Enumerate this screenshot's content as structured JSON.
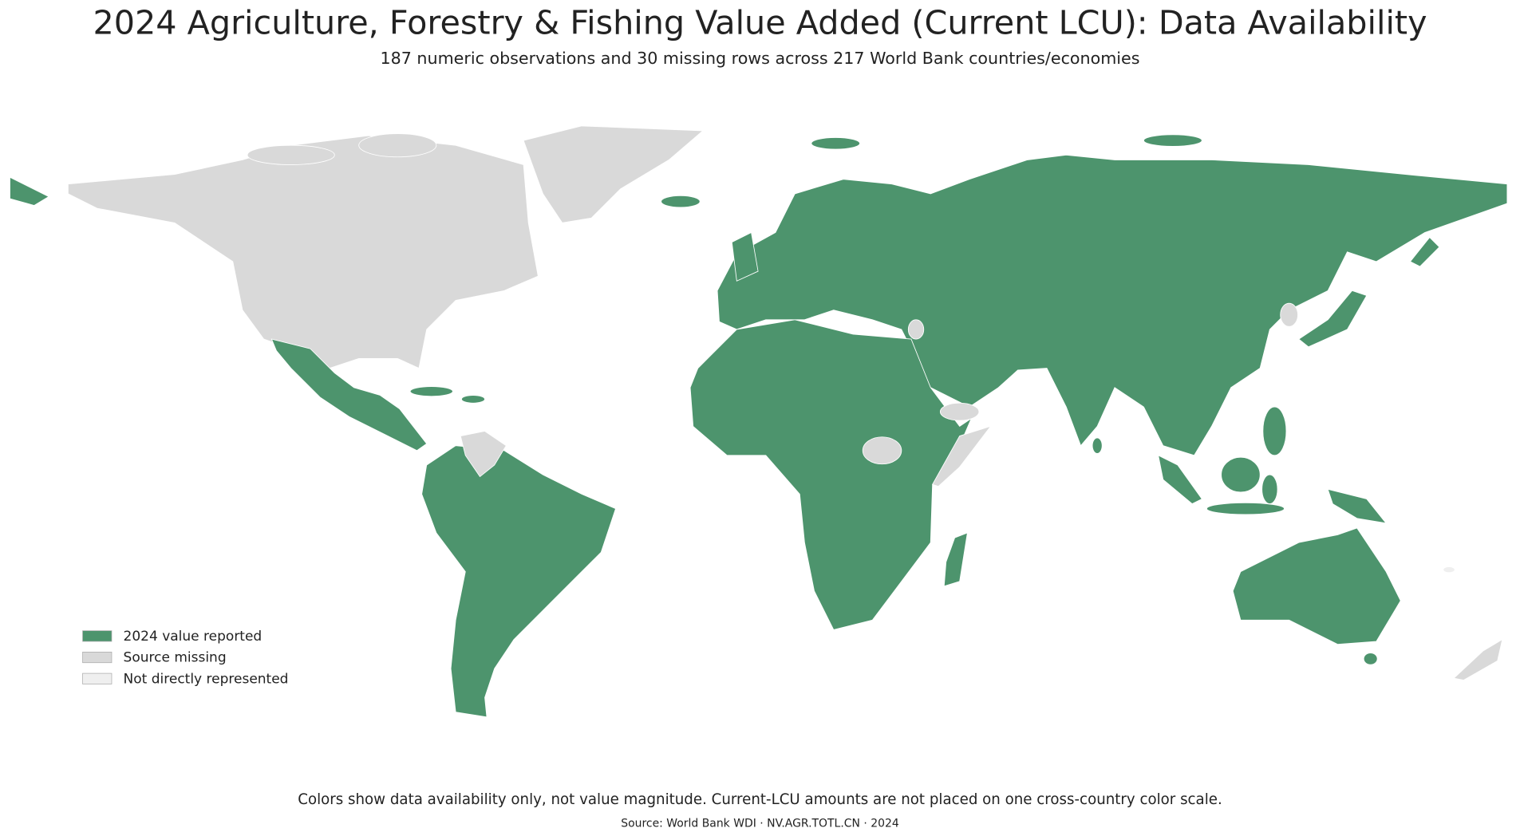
{
  "header": {
    "title": "2024 Agriculture, Forestry & Fishing Value Added (Current LCU): Data Availability",
    "subtitle": "187 numeric observations and 30 missing rows across 217 World Bank countries/economies"
  },
  "legend": {
    "items": [
      {
        "label": "2024 value reported",
        "color": "#4d946d"
      },
      {
        "label": "Source missing",
        "color": "#d9d9d9"
      },
      {
        "label": "Not directly represented",
        "color": "#efefef"
      }
    ]
  },
  "footer": {
    "note": "Colors show data availability only, not value magnitude. Current-LCU amounts are not placed on one cross-country color scale.",
    "source": "Source: World Bank WDI · NV.AGR.TOTL.CN · 2024"
  }
}
